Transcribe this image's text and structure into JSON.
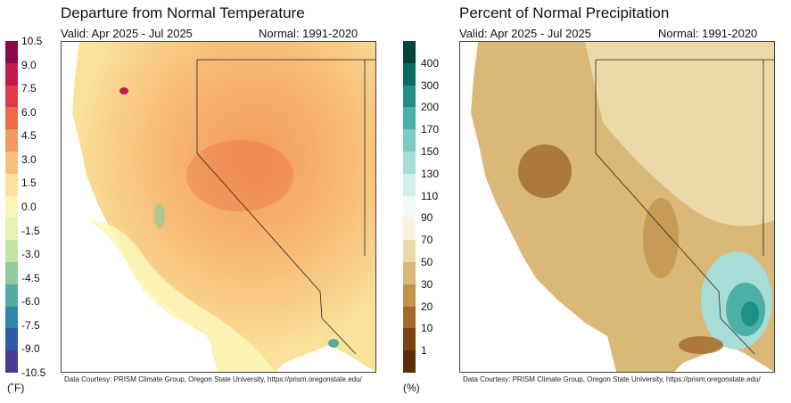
{
  "left": {
    "title": "Departure from Normal Temperature",
    "valid": "Valid: Apr 2025 - Jul 2025",
    "normal": "Normal: 1991-2020",
    "credit": "Data Courtesy: PRISM Climate Group, Oregon State University, https://prism.oregonstate.edu/",
    "unit": "(˚F)",
    "ticks": [
      "10.5",
      "9.0",
      "7.5",
      "6.0",
      "4.5",
      "3.0",
      "1.5",
      "0.0",
      "-1.5",
      "-3.0",
      "-4.5",
      "-6.0",
      "-7.5",
      "-9.0",
      "-10.5"
    ],
    "colors": [
      "#8c0a4a",
      "#c21b4b",
      "#de3b44",
      "#ec6a45",
      "#f39a5a",
      "#f7c07a",
      "#fae29a",
      "#fbf7bb",
      "#e6f1b3",
      "#c4e2a4",
      "#8fcb9d",
      "#55ab9f",
      "#2f86ab",
      "#2e5aa8",
      "#4a3a96"
    ]
  },
  "right": {
    "title": "Percent of Normal Precipitation",
    "valid": "Valid: Apr 2025 - Jul 2025",
    "normal": "Normal: 1991-2020",
    "credit": "Data Courtesy: PRISM Climate Group, Oregon State University, https://prism.oregonstate.edu/",
    "unit": "(%)",
    "ticks": [
      "400",
      "300",
      "200",
      "170",
      "150",
      "130",
      "110",
      "90",
      "70",
      "50",
      "30",
      "20",
      "10",
      "1"
    ],
    "colors": [
      "#00443a",
      "#0b6b62",
      "#208f86",
      "#4ab0a8",
      "#7cc9c2",
      "#a8dcd6",
      "#d1eeea",
      "#f2faf8",
      "#f8f2de",
      "#ecd9a8",
      "#d9b878",
      "#c2934e",
      "#9f6a2c",
      "#7a4514",
      "#583006"
    ]
  }
}
